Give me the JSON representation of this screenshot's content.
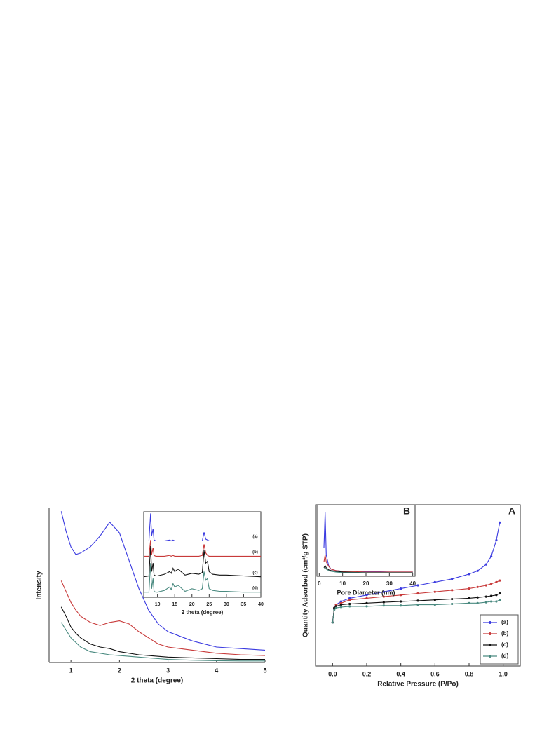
{
  "chart_data": [
    {
      "type": "line",
      "xlabel": "2 theta (degree)",
      "ylabel": "Intensity",
      "x": [
        0.8,
        0.9,
        1,
        1.1,
        1.2,
        1.4,
        1.6,
        1.8,
        2,
        2.2,
        2.4,
        2.6,
        2.8,
        3,
        3.5,
        4,
        4.5,
        5
      ],
      "xlim": [
        0.55,
        5
      ],
      "xticks": [
        1,
        2,
        3,
        4,
        5
      ],
      "ylim": [
        0,
        100
      ],
      "series": [
        {
          "color": "#3a3ae0",
          "values": [
            98,
            85,
            75,
            70,
            71,
            75,
            82,
            91,
            84,
            66,
            48,
            34,
            25,
            20,
            14,
            10,
            9,
            8
          ]
        },
        {
          "color": "#c83a3a",
          "values": [
            53,
            46,
            39,
            34,
            30,
            26,
            24,
            26,
            27,
            25,
            20,
            16,
            12,
            10,
            8,
            6,
            5,
            4.5
          ]
        },
        {
          "color": "#111111",
          "values": [
            36,
            30,
            23,
            19,
            16,
            12,
            10,
            9,
            7,
            6,
            5,
            4.5,
            4,
            3.5,
            3,
            2.5,
            2,
            2
          ]
        },
        {
          "color": "#4a8a80",
          "values": [
            26,
            21,
            16,
            13,
            10,
            7,
            6,
            5,
            4.5,
            4,
            3.5,
            3,
            2.5,
            2,
            1.5,
            1.2,
            1,
            1
          ]
        }
      ]
    },
    {
      "type": "line",
      "xlabel": "2 theta (degree)",
      "x": [
        6,
        7.5,
        8,
        8.3,
        8.7,
        9,
        9.5,
        10,
        12,
        13.5,
        14,
        14.5,
        15,
        16,
        18,
        20,
        22,
        23,
        23.5,
        24,
        24.5,
        25,
        26,
        28,
        30,
        35,
        40
      ],
      "xlim": [
        6,
        40
      ],
      "xticks": [
        10,
        15,
        20,
        25,
        30,
        35,
        40
      ],
      "ylim": [
        0,
        100
      ],
      "series": [
        {
          "name": "(a)",
          "color": "#3a3ae0",
          "values": [
            66,
            66,
            98,
            72,
            80,
            67,
            66,
            66,
            66,
            67,
            66,
            67,
            66,
            66,
            66,
            66,
            66,
            66,
            76,
            68,
            67,
            66,
            66,
            66,
            66,
            66,
            66
          ]
        },
        {
          "name": "(b)",
          "color": "#c83a3a",
          "values": [
            48,
            48,
            67,
            50,
            58,
            49,
            48,
            48,
            48,
            49,
            48,
            49,
            48,
            48,
            48,
            48,
            48,
            49,
            62,
            52,
            49,
            48,
            48,
            48,
            48,
            48,
            48
          ]
        },
        {
          "name": "(c)",
          "color": "#111111",
          "values": [
            24,
            25,
            60,
            30,
            40,
            26,
            25,
            25,
            27,
            30,
            28,
            34,
            30,
            33,
            26,
            28,
            27,
            29,
            55,
            40,
            42,
            30,
            27,
            26,
            26,
            25,
            24
          ]
        },
        {
          "name": "(d)",
          "color": "#4a8a80",
          "values": [
            6,
            6,
            40,
            10,
            22,
            7,
            6,
            6,
            8,
            12,
            9,
            16,
            12,
            14,
            7,
            10,
            8,
            10,
            30,
            20,
            22,
            10,
            8,
            7,
            7,
            6,
            6
          ]
        }
      ]
    },
    {
      "type": "line",
      "panel_label": "A",
      "xlabel": "Relative Pressure (P/Po)",
      "ylabel": "Quantity Adsorbed (cm³/g STP)",
      "x": [
        0,
        0.01,
        0.02,
        0.05,
        0.1,
        0.2,
        0.3,
        0.4,
        0.5,
        0.6,
        0.7,
        0.8,
        0.85,
        0.9,
        0.93,
        0.96,
        0.98
      ],
      "xlim": [
        -0.1,
        1.1
      ],
      "xticks": [
        {
          "value": 0,
          "label": "0.0"
        },
        0.2,
        0.4,
        0.6,
        0.8,
        {
          "value": 1,
          "label": "1.0"
        }
      ],
      "ylim": [
        0,
        100
      ],
      "legend": "lower right",
      "series": [
        {
          "name": "(a)",
          "color": "#3a3ae0",
          "values": [
            27,
            36,
            38,
            40,
            42,
            44,
            46,
            48,
            50,
            52,
            54,
            57,
            59,
            63,
            68,
            78,
            89
          ]
        },
        {
          "name": "(b)",
          "color": "#c83a3a",
          "values": [
            27,
            36,
            38,
            39,
            41,
            42,
            43,
            44,
            45,
            46,
            47,
            48,
            49,
            50,
            51,
            52,
            53
          ]
        },
        {
          "name": "(c)",
          "color": "#111111",
          "values": [
            27,
            36,
            37,
            38,
            38.5,
            39,
            39.5,
            40,
            40.5,
            41,
            41.5,
            42,
            42.5,
            43,
            43.5,
            44,
            45
          ]
        },
        {
          "name": "(d)",
          "color": "#4a8a80",
          "values": [
            27,
            35,
            36,
            36.5,
            37,
            37,
            37.5,
            37.5,
            38,
            38,
            38.5,
            39,
            39,
            39.5,
            40,
            40,
            41
          ]
        }
      ]
    },
    {
      "type": "line",
      "panel_label": "B",
      "xlabel": "Pore Diameter (nm)",
      "x": [
        2,
        2.5,
        3,
        4,
        5,
        7,
        10,
        20,
        30,
        40
      ],
      "xlim": [
        -1,
        41
      ],
      "xticks": [
        0,
        10,
        20,
        30,
        40
      ],
      "ylim": [
        0,
        100
      ],
      "series": [
        {
          "color": "#3a3ae0",
          "values": [
            40,
            90,
            30,
            15,
            10,
            8,
            7,
            7,
            6,
            6
          ]
        },
        {
          "color": "#c83a3a",
          "values": [
            20,
            30,
            20,
            14,
            10,
            8,
            7,
            6,
            6,
            6
          ]
        },
        {
          "color": "#111111",
          "values": [
            12,
            15,
            12,
            9,
            8,
            7,
            6,
            5,
            5,
            5
          ]
        },
        {
          "color": "#4a8a80",
          "values": [
            10,
            12,
            10,
            8,
            7,
            6,
            5,
            5,
            5,
            5
          ]
        }
      ]
    }
  ]
}
